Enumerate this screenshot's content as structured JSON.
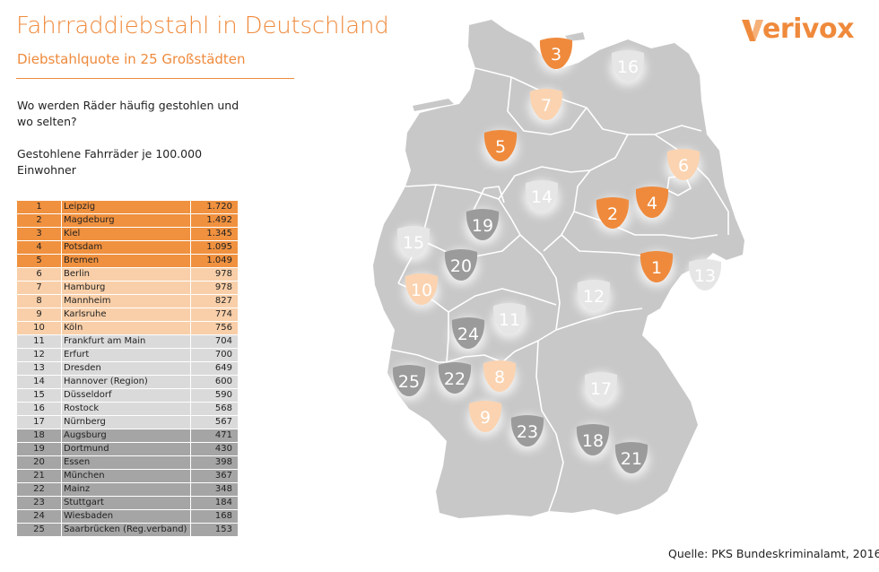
{
  "header": {
    "title": "Fahrraddiebstahl in Deutschland",
    "subtitle": "Diebstahlquote in 25 Großstädten"
  },
  "intro": {
    "question": "Wo werden Räder häufig gestohlen und wo selten?",
    "unit": "Gestohlene Fahrräder je 100.000 Einwohner"
  },
  "tier_colors": {
    "t1": "#f0913f",
    "t2": "#f8cfa9",
    "t3": "#dadada",
    "t4": "#a5a5a5"
  },
  "ranking": [
    {
      "rank": "1",
      "city": "Leipzig",
      "value": "1.720",
      "tier": "t1"
    },
    {
      "rank": "2",
      "city": "Magdeburg",
      "value": "1.492",
      "tier": "t1"
    },
    {
      "rank": "3",
      "city": "Kiel",
      "value": "1.345",
      "tier": "t1"
    },
    {
      "rank": "4",
      "city": "Potsdam",
      "value": "1.095",
      "tier": "t1"
    },
    {
      "rank": "5",
      "city": "Bremen",
      "value": "1.049",
      "tier": "t1"
    },
    {
      "rank": "6",
      "city": "Berlin",
      "value": "978",
      "tier": "t2"
    },
    {
      "rank": "7",
      "city": "Hamburg",
      "value": "978",
      "tier": "t2"
    },
    {
      "rank": "8",
      "city": "Mannheim",
      "value": "827",
      "tier": "t2"
    },
    {
      "rank": "9",
      "city": "Karlsruhe",
      "value": "774",
      "tier": "t2"
    },
    {
      "rank": "10",
      "city": "Köln",
      "value": "756",
      "tier": "t2"
    },
    {
      "rank": "11",
      "city": "Frankfurt am Main",
      "value": "704",
      "tier": "t3"
    },
    {
      "rank": "12",
      "city": "Erfurt",
      "value": "700",
      "tier": "t3"
    },
    {
      "rank": "13",
      "city": "Dresden",
      "value": "649",
      "tier": "t3"
    },
    {
      "rank": "14",
      "city": "Hannover (Region)",
      "value": "600",
      "tier": "t3"
    },
    {
      "rank": "15",
      "city": "Düsseldorf",
      "value": "590",
      "tier": "t3"
    },
    {
      "rank": "16",
      "city": "Rostock",
      "value": "568",
      "tier": "t3"
    },
    {
      "rank": "17",
      "city": "Nürnberg",
      "value": "567",
      "tier": "t3"
    },
    {
      "rank": "18",
      "city": "Augsburg",
      "value": "471",
      "tier": "t4"
    },
    {
      "rank": "19",
      "city": "Dortmund",
      "value": "430",
      "tier": "t4"
    },
    {
      "rank": "20",
      "city": "Essen",
      "value": "398",
      "tier": "t4"
    },
    {
      "rank": "21",
      "city": "München",
      "value": "367",
      "tier": "t4"
    },
    {
      "rank": "22",
      "city": "Mainz",
      "value": "348",
      "tier": "t4"
    },
    {
      "rank": "23",
      "city": "Stuttgart",
      "value": "184",
      "tier": "t4"
    },
    {
      "rank": "24",
      "city": "Wiesbaden",
      "value": "168",
      "tier": "t4"
    },
    {
      "rank": "25",
      "city": "Saarbrücken (Reg.verband)",
      "value": "153",
      "tier": "t4"
    }
  ],
  "map": {
    "marker_colors": {
      "t1": "#ef8a3c",
      "t2": "#fbd3b0",
      "t3": "#e6e6e6",
      "t4": "#9b9b9b"
    },
    "land_color": "#c8c8c8",
    "border_color": "#ffffff"
  },
  "logo": {
    "text": "erivox",
    "mark_icon": "verivox-v-mark",
    "color": "#ef8a3c"
  },
  "source": "Quelle: PKS Bundeskriminalamt, 2016"
}
